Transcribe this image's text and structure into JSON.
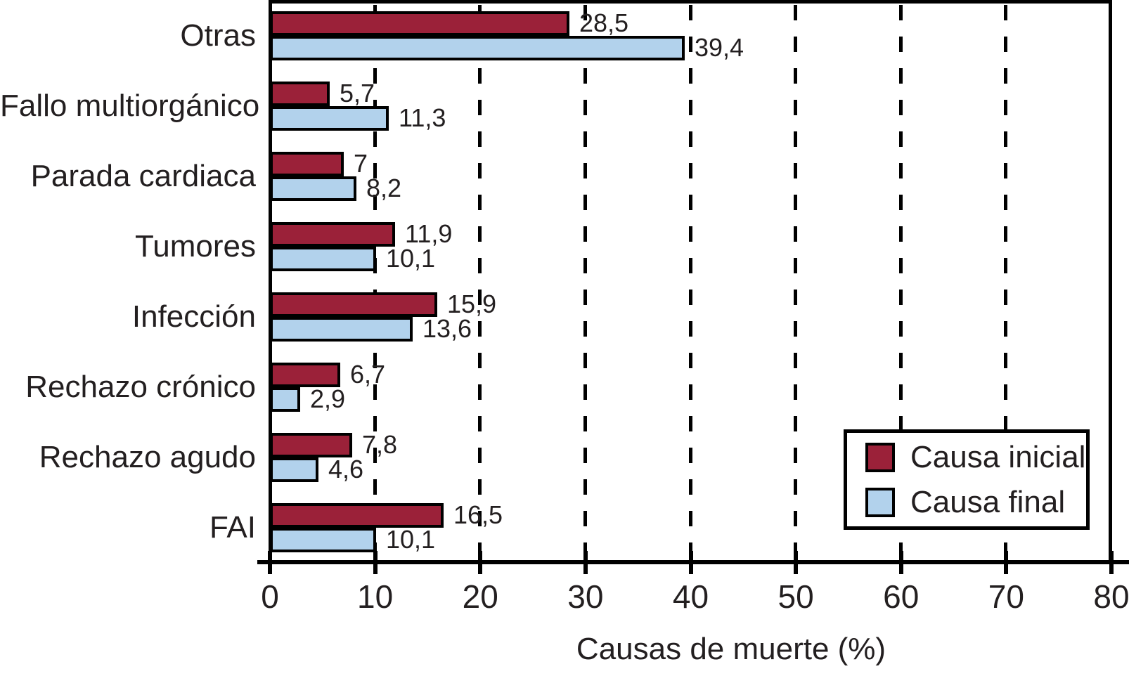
{
  "chart_data": {
    "type": "bar",
    "orientation": "horizontal",
    "title": "",
    "xlabel": "Causas de muerte (%)",
    "ylabel": "",
    "xlim": [
      0,
      80
    ],
    "xticks": [
      0,
      10,
      20,
      30,
      40,
      50,
      60,
      70,
      80
    ],
    "xtick_labels": [
      "0",
      "10",
      "20",
      "30",
      "40",
      "50",
      "60",
      "70",
      "80"
    ],
    "grid": "dashed vertical lines at 10 through 70",
    "legend_position": "inside bottom-right, framed box",
    "categories": [
      "Otras",
      "Fallo multiorgánico",
      "Parada cardiaca",
      "Tumores",
      "Infección",
      "Rechazo crónico",
      "Rechazo agudo",
      "FAI"
    ],
    "series": [
      {
        "name": "Causa inicial",
        "color": "#9B2139",
        "values": [
          28.5,
          5.7,
          7,
          11.9,
          15.9,
          6.7,
          7.8,
          16.5
        ],
        "labels": [
          "28,5",
          "5,7",
          "7",
          "11,9",
          "15,9",
          "6,7",
          "7,8",
          "16,5"
        ]
      },
      {
        "name": "Causa final",
        "color": "#B2D2EC",
        "values": [
          39.4,
          11.3,
          8.2,
          10.1,
          13.6,
          2.9,
          4.6,
          10.1
        ],
        "labels": [
          "39,4",
          "11,3",
          "8,2",
          "10,1",
          "13,6",
          "2,9",
          "4,6",
          "10,1"
        ]
      }
    ],
    "colors": {
      "text": "#231F20",
      "line": "#000000",
      "background": "#FFFFFF"
    }
  }
}
